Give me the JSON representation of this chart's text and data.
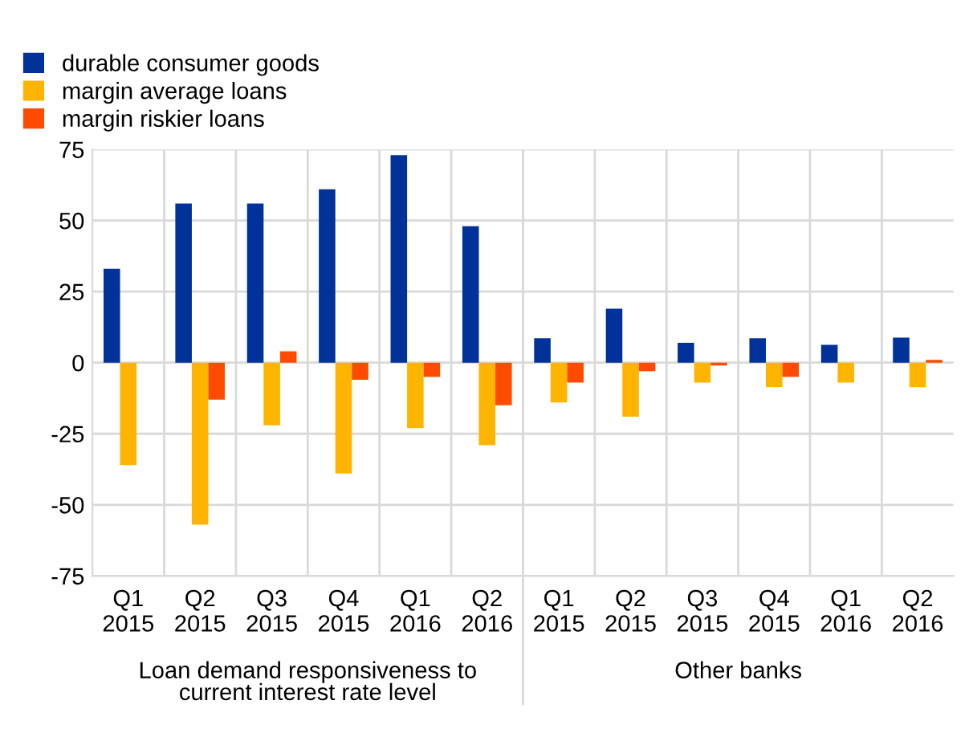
{
  "chart_data": {
    "type": "bar",
    "categories": [
      "Q1\n2015",
      "Q2\n2015",
      "Q3\n2015",
      "Q4\n2015",
      "Q1\n2016",
      "Q2\n2016",
      "Q1\n2015",
      "Q2\n2015",
      "Q3\n2015",
      "Q4\n2015",
      "Q1\n2016",
      "Q2\n2016"
    ],
    "series": [
      {
        "name": "durable consumer goods",
        "color": "#003299",
        "values": [
          33,
          56,
          56,
          61,
          73,
          48,
          8.6,
          19,
          7,
          8.6,
          6.3,
          8.8
        ]
      },
      {
        "name": "margin average loans",
        "color": "#ffb400",
        "values": [
          -36,
          -57,
          -22,
          -39,
          -23,
          -29,
          -14,
          -19,
          -7,
          -8.6,
          -7,
          -8.6
        ]
      },
      {
        "name": "margin riskier loans",
        "color": "#ff4b00",
        "values": [
          0,
          -13,
          4,
          -6,
          -5,
          -15,
          -7,
          -3,
          -1,
          -5,
          0,
          1
        ]
      }
    ],
    "ylim": [
      -75,
      75
    ],
    "yticks": [
      -75,
      -50,
      -25,
      0,
      25,
      50,
      75
    ],
    "grid": true,
    "legend": "top left",
    "annotations": [
      "Loan demand responsiveness to\ncurrent interest rate level",
      "Other banks"
    ]
  }
}
